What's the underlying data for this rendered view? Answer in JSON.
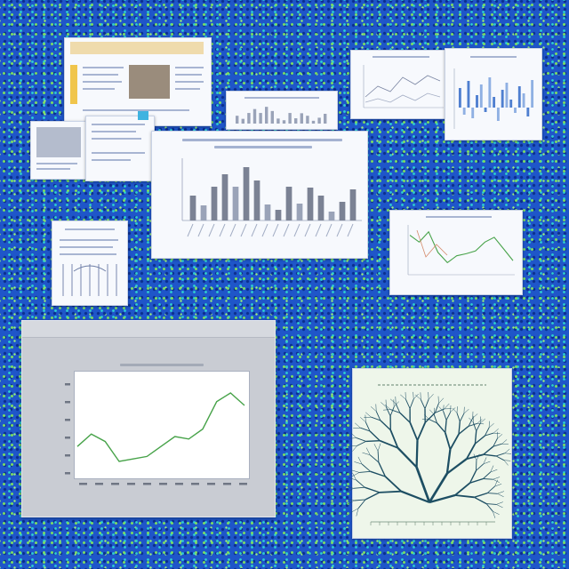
{
  "image": {
    "kind": "collage of chart and document thumbnails on blue textured background"
  },
  "colors": {
    "background": "#1f56c9",
    "card": "#f7f9fd",
    "bar": "#7b8294",
    "bar_alt": "#9aa3b8",
    "line_green": "#48a34a",
    "bar_blue": "#4f7fd0",
    "tree": "#1d4e63"
  },
  "chart_data": [
    {
      "type": "bar",
      "categories": [
        "",
        "",
        "",
        "",
        "",
        "",
        "",
        "",
        "",
        "",
        "",
        "",
        "",
        "",
        "",
        ""
      ],
      "values": [
        28,
        17,
        38,
        52,
        38,
        60,
        45,
        18,
        12,
        38,
        19,
        37,
        28,
        10,
        21,
        35
      ],
      "ylim": [
        0,
        70
      ]
    },
    {
      "type": "line",
      "x": [
        0,
        1,
        2,
        3,
        4,
        5,
        6,
        7,
        8,
        9,
        10,
        11,
        12
      ],
      "values": [
        22,
        32,
        26,
        10,
        12,
        14,
        22,
        30,
        28,
        36,
        58,
        65,
        55
      ],
      "ylim": [
        0,
        80
      ]
    },
    {
      "type": "line",
      "x": [
        0,
        1,
        2,
        3,
        4,
        5,
        6,
        7,
        8,
        9,
        10,
        11
      ],
      "values": [
        55,
        45,
        60,
        30,
        15,
        25,
        28,
        32,
        45,
        52,
        35,
        18
      ],
      "ylim": [
        0,
        70
      ]
    },
    {
      "type": "bar",
      "categories": [
        "",
        "",
        "",
        "",
        "",
        "",
        "",
        "",
        "",
        "",
        "",
        "",
        "",
        "",
        "",
        "",
        "",
        ""
      ],
      "values": [
        22,
        -8,
        30,
        -12,
        14,
        26,
        -5,
        34,
        12,
        -15,
        20,
        28,
        9,
        -6,
        24,
        16,
        -10,
        31
      ],
      "ylim": [
        -20,
        40
      ]
    }
  ]
}
